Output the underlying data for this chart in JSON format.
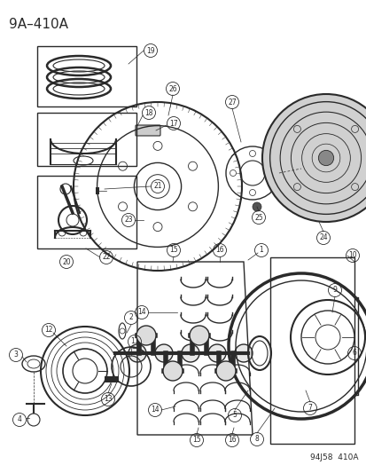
{
  "title": "9A–410A",
  "footer": "94J58  410A",
  "bg_color": "#ffffff",
  "line_color": "#2a2a2a",
  "title_fontsize": 11,
  "footer_fontsize": 6.5,
  "label_fontsize": 6,
  "figw": 4.14,
  "figh": 5.33,
  "dpi": 100
}
